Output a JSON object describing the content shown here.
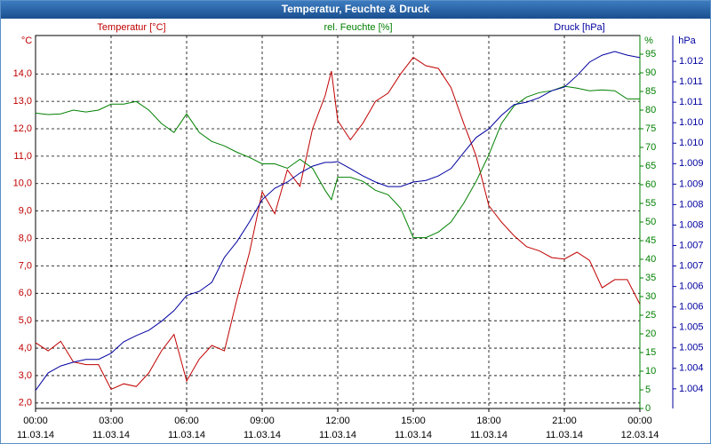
{
  "chart_data": {
    "type": "line",
    "title": "Temperatur, Feuchte & Druck",
    "ylabel": "°C",
    "y2label": "%",
    "y3label": "hPa",
    "x": [
      0,
      0.5,
      1,
      1.5,
      2,
      2.5,
      3,
      3.5,
      4,
      4.5,
      5,
      5.5,
      6,
      6.5,
      7,
      7.5,
      8,
      8.5,
      9,
      9.5,
      10,
      10.5,
      11,
      11.5,
      11.75,
      12,
      12.5,
      13,
      13.5,
      14,
      14.5,
      15,
      15.5,
      16,
      16.5,
      17,
      17.5,
      18,
      18.5,
      19,
      19.5,
      20,
      20.5,
      21,
      21.5,
      22,
      22.5,
      23,
      23.5,
      24
    ],
    "xlim": [
      0,
      24
    ],
    "xticks": [
      {
        "value": 0,
        "label": "00:00"
      },
      {
        "value": 3,
        "label": "03:00"
      },
      {
        "value": 6,
        "label": "06:00"
      },
      {
        "value": 9,
        "label": "09:00"
      },
      {
        "value": 12,
        "label": "12:00"
      },
      {
        "value": 15,
        "label": "15:00"
      },
      {
        "value": 18,
        "label": "18:00"
      },
      {
        "value": 21,
        "label": "21:00"
      },
      {
        "value": 24,
        "label": "00:00"
      }
    ],
    "xtick_dates": [
      "11.03.14",
      "11.03.14",
      "11.03.14",
      "11.03.14",
      "11.03.14",
      "11.03.14",
      "11.03.14",
      "11.03.14",
      "12.03.14"
    ],
    "ylim": [
      1.8,
      15.4
    ],
    "yticks": [
      {
        "value": 2,
        "label": "2,0"
      },
      {
        "value": 3,
        "label": "3,0"
      },
      {
        "value": 4,
        "label": "4,0"
      },
      {
        "value": 5,
        "label": "5,0"
      },
      {
        "value": 6,
        "label": "6,0"
      },
      {
        "value": 7,
        "label": "7,0"
      },
      {
        "value": 8,
        "label": "8,0"
      },
      {
        "value": 9,
        "label": "9,0"
      },
      {
        "value": 10,
        "label": "10,0"
      },
      {
        "value": 11,
        "label": "11,0"
      },
      {
        "value": 12,
        "label": "12,0"
      },
      {
        "value": 13,
        "label": "13,0"
      },
      {
        "value": 14,
        "label": "14,0"
      }
    ],
    "y2lim": [
      0,
      100
    ],
    "y2ticks": [
      0,
      5,
      10,
      15,
      20,
      25,
      30,
      35,
      40,
      45,
      50,
      55,
      60,
      65,
      70,
      75,
      80,
      85,
      90,
      95
    ],
    "y3lim": [
      1.00352,
      1.01263
    ],
    "y3ticks": [
      {
        "value": 1.012,
        "label": "1.012"
      },
      {
        "value": 1.0115,
        "label": "1.011"
      },
      {
        "value": 1.011,
        "label": "1.011"
      },
      {
        "value": 1.0105,
        "label": "1.010"
      },
      {
        "value": 1.01,
        "label": "1.010"
      },
      {
        "value": 1.0095,
        "label": "1.009"
      },
      {
        "value": 1.009,
        "label": "1.009"
      },
      {
        "value": 1.0085,
        "label": "1.008"
      },
      {
        "value": 1.008,
        "label": "1.008"
      },
      {
        "value": 1.0075,
        "label": "1.007"
      },
      {
        "value": 1.007,
        "label": "1.007"
      },
      {
        "value": 1.0065,
        "label": "1.006"
      },
      {
        "value": 1.006,
        "label": "1.006"
      },
      {
        "value": 1.0055,
        "label": "1.005"
      },
      {
        "value": 1.005,
        "label": "1.005"
      },
      {
        "value": 1.0045,
        "label": "1.004"
      },
      {
        "value": 1.004,
        "label": "1.004"
      }
    ],
    "grid": true,
    "series": [
      {
        "name": "Temperatur [°C]",
        "color": "#c00000",
        "axis": "y",
        "values": [
          4.2,
          3.9,
          4.25,
          3.5,
          3.4,
          3.4,
          2.5,
          2.7,
          2.6,
          3.1,
          3.9,
          4.5,
          2.8,
          3.6,
          4.1,
          3.9,
          5.8,
          7.5,
          9.7,
          8.9,
          10.5,
          9.9,
          12,
          13.2,
          14.1,
          12.3,
          11.6,
          12.2,
          13,
          13.3,
          14,
          14.6,
          14.3,
          14.2,
          13.5,
          12.2,
          11,
          9.2,
          8.6,
          8.1,
          7.7,
          7.55,
          7.3,
          7.25,
          7.5,
          7.2,
          6.2,
          6.5,
          6.5,
          5.6
        ]
      },
      {
        "name": "rel. Feuchte [%]",
        "color": "#008000",
        "axis": "y2",
        "values": [
          79.2,
          78.8,
          79,
          80,
          79.5,
          80,
          81.6,
          81.6,
          82.3,
          80,
          76.4,
          74,
          79,
          74,
          71.6,
          70.4,
          68.7,
          67.3,
          65.6,
          65.6,
          64.4,
          66.8,
          64.4,
          58.5,
          56,
          62,
          62,
          60.9,
          58.5,
          57.3,
          53.7,
          45.8,
          45.8,
          47.3,
          50,
          55,
          60.9,
          68,
          76.4,
          81.1,
          83.5,
          84.7,
          85.2,
          86.4,
          85.9,
          85.2,
          85.4,
          85.2,
          83,
          83
        ]
      },
      {
        "name": "Druck [hPa]",
        "color": "#0000a0",
        "axis": "y3",
        "values": [
          1.00396,
          1.00439,
          1.00456,
          1.00465,
          1.00472,
          1.00472,
          1.00487,
          1.00515,
          1.0053,
          1.00543,
          1.00565,
          1.00591,
          1.00628,
          1.00638,
          1.0066,
          1.00721,
          1.0076,
          1.00808,
          1.00862,
          1.0089,
          1.00905,
          1.00927,
          1.00944,
          1.00953,
          1.00953,
          1.00955,
          1.00938,
          1.0092,
          1.00905,
          1.00894,
          1.00894,
          1.00905,
          1.00909,
          1.0092,
          1.00938,
          1.00977,
          1.01014,
          1.01035,
          1.01068,
          1.01094,
          1.011,
          1.01111,
          1.01128,
          1.01137,
          1.01165,
          1.01198,
          1.01215,
          1.01224,
          1.01215,
          1.01209
        ]
      }
    ]
  }
}
